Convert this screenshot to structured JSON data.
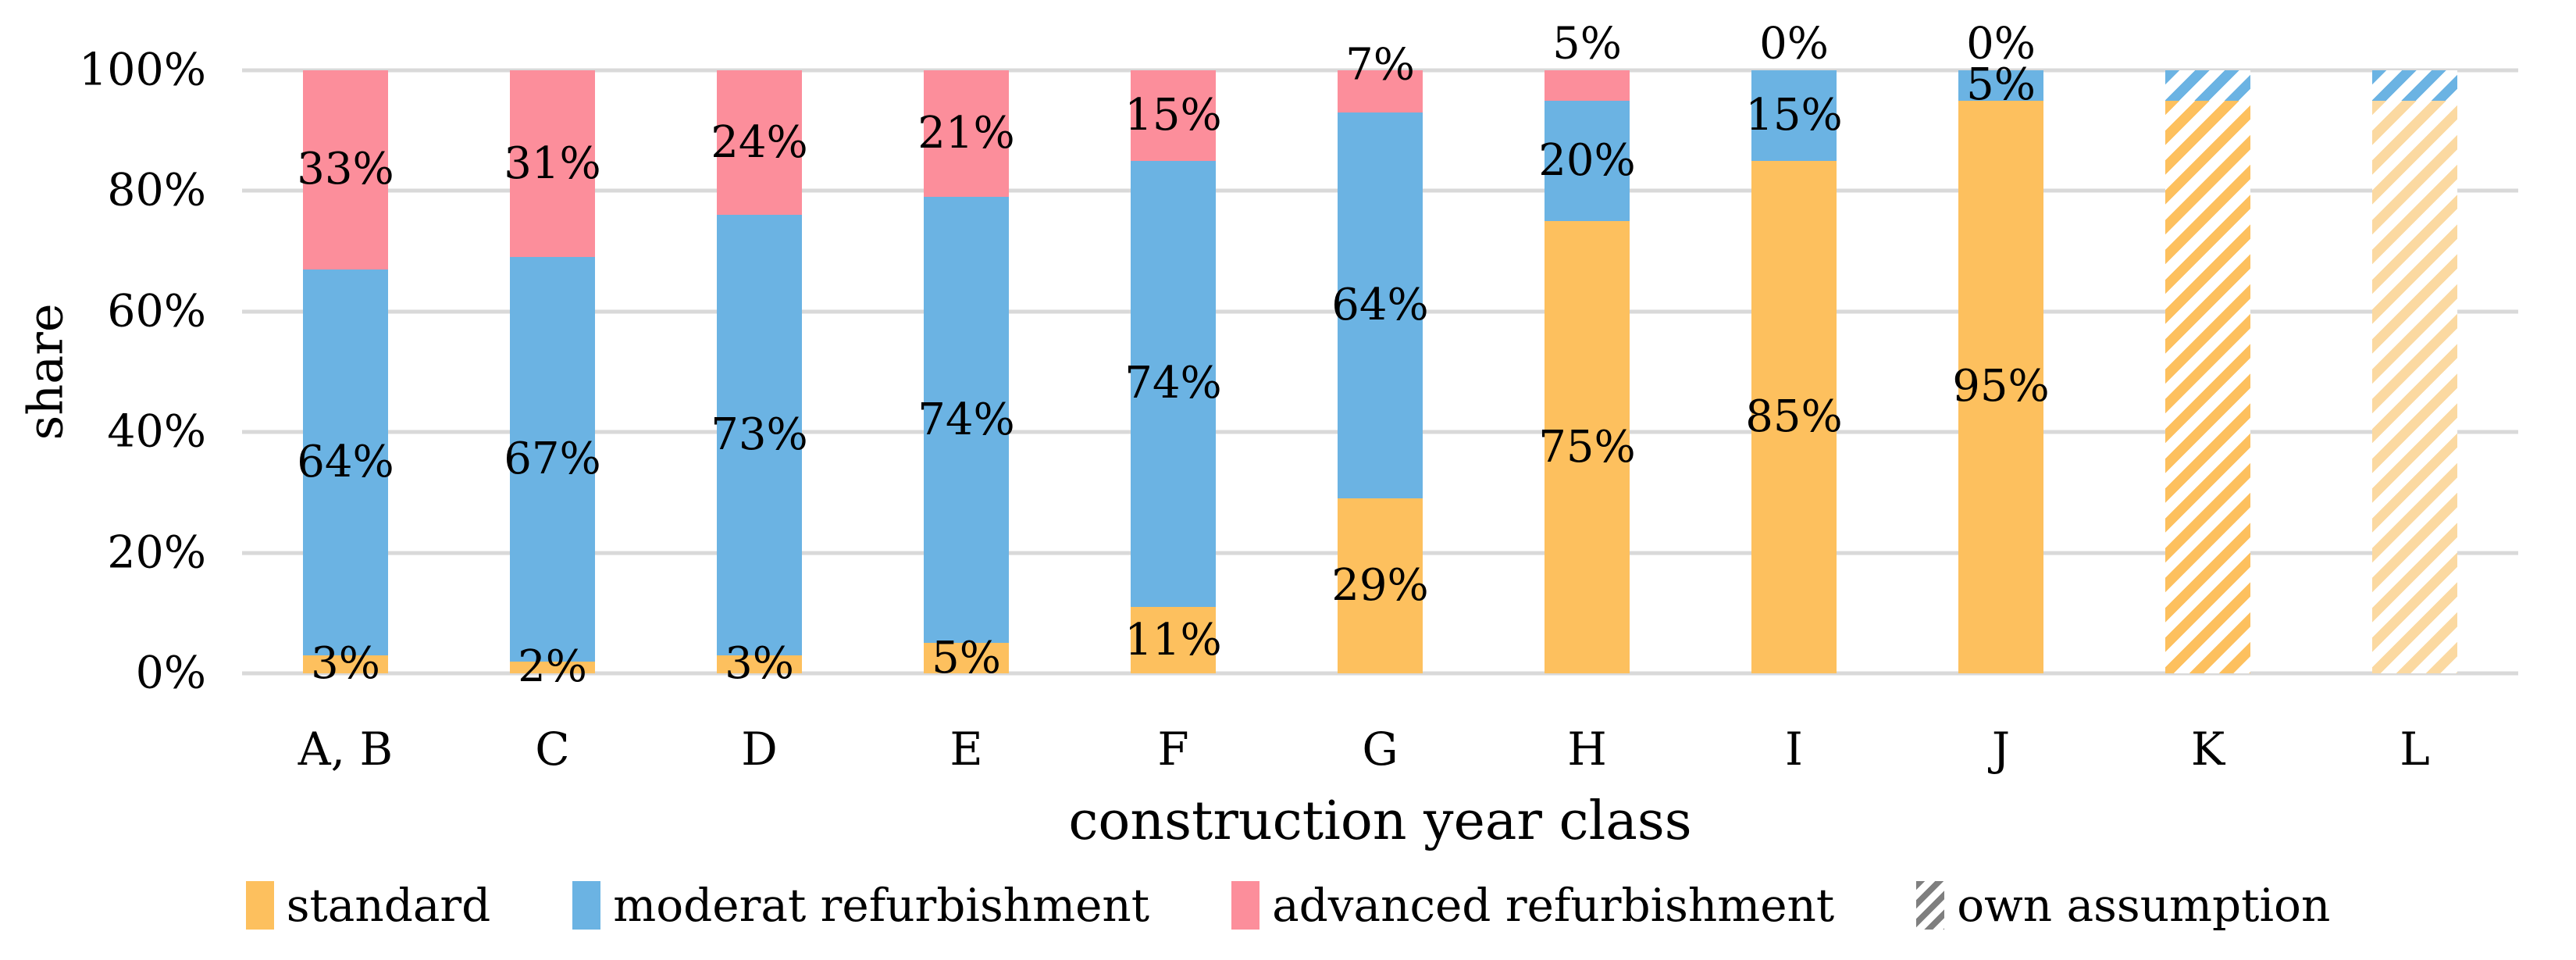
{
  "figure": {
    "background": "#FFFFFF"
  },
  "colors": {
    "standard": "#FDC05E",
    "moderat_refurbishment": "#6BB3E3",
    "advanced_refurbishment": "#FC8E9B",
    "standard_light": "#FBD9A1",
    "legend_hatch": "#7F7F7F",
    "gridline": "#D9D9D9",
    "text": "#000000"
  },
  "chart_data": {
    "type": "bar",
    "stacked": true,
    "title": "",
    "xlabel": "construction year class",
    "ylabel": "share",
    "ylim": [
      0,
      100
    ],
    "yticks": [
      "0%",
      "20%",
      "40%",
      "60%",
      "80%",
      "100%"
    ],
    "grid": true,
    "legend_position": "bottom",
    "categories": [
      "A, B",
      "C",
      "D",
      "E",
      "F",
      "G",
      "H",
      "I",
      "J",
      "K",
      "L"
    ],
    "series": [
      {
        "name": "standard",
        "values": [
          3,
          2,
          3,
          5,
          11,
          29,
          75,
          85,
          95,
          95,
          95
        ]
      },
      {
        "name": "moderat refurbishment",
        "values": [
          64,
          67,
          73,
          74,
          74,
          64,
          20,
          15,
          5,
          5,
          5
        ]
      },
      {
        "name": "advanced refurbishment",
        "values": [
          33,
          31,
          24,
          21,
          15,
          7,
          5,
          0,
          0,
          0,
          0
        ]
      }
    ],
    "bars": [
      {
        "category": "A, B",
        "segments": [
          {
            "value": 3,
            "color": "standard",
            "hatch": false,
            "label": "3%",
            "label_pos": "inside"
          },
          {
            "value": 64,
            "color": "moderat_refurbishment",
            "hatch": false,
            "label": "64%",
            "label_pos": "inside"
          },
          {
            "value": 33,
            "color": "advanced_refurbishment",
            "hatch": false,
            "label": "33%",
            "label_pos": "inside"
          }
        ]
      },
      {
        "category": "C",
        "segments": [
          {
            "value": 2,
            "color": "standard",
            "hatch": false,
            "label": "2%",
            "label_pos": "inside"
          },
          {
            "value": 67,
            "color": "moderat_refurbishment",
            "hatch": false,
            "label": "67%",
            "label_pos": "inside"
          },
          {
            "value": 31,
            "color": "advanced_refurbishment",
            "hatch": false,
            "label": "31%",
            "label_pos": "inside"
          }
        ]
      },
      {
        "category": "D",
        "segments": [
          {
            "value": 3,
            "color": "standard",
            "hatch": false,
            "label": "3%",
            "label_pos": "inside"
          },
          {
            "value": 73,
            "color": "moderat_refurbishment",
            "hatch": false,
            "label": "73%",
            "label_pos": "inside"
          },
          {
            "value": 24,
            "color": "advanced_refurbishment",
            "hatch": false,
            "label": "24%",
            "label_pos": "inside"
          }
        ]
      },
      {
        "category": "E",
        "segments": [
          {
            "value": 5,
            "color": "standard",
            "hatch": false,
            "label": "5%",
            "label_pos": "inside"
          },
          {
            "value": 74,
            "color": "moderat_refurbishment",
            "hatch": false,
            "label": "74%",
            "label_pos": "inside"
          },
          {
            "value": 21,
            "color": "advanced_refurbishment",
            "hatch": false,
            "label": "21%",
            "label_pos": "inside"
          }
        ]
      },
      {
        "category": "F",
        "segments": [
          {
            "value": 11,
            "color": "standard",
            "hatch": false,
            "label": "11%",
            "label_pos": "inside"
          },
          {
            "value": 74,
            "color": "moderat_refurbishment",
            "hatch": false,
            "label": "74%",
            "label_pos": "inside"
          },
          {
            "value": 15,
            "color": "advanced_refurbishment",
            "hatch": false,
            "label": "15%",
            "label_pos": "inside"
          }
        ]
      },
      {
        "category": "G",
        "segments": [
          {
            "value": 29,
            "color": "standard",
            "hatch": false,
            "label": "29%",
            "label_pos": "inside"
          },
          {
            "value": 64,
            "color": "moderat_refurbishment",
            "hatch": false,
            "label": "64%",
            "label_pos": "inside"
          },
          {
            "value": 7,
            "color": "advanced_refurbishment",
            "hatch": false,
            "label": "7%",
            "label_pos": "above-overlap"
          }
        ]
      },
      {
        "category": "H",
        "segments": [
          {
            "value": 75,
            "color": "standard",
            "hatch": false,
            "label": "75%",
            "label_pos": "inside"
          },
          {
            "value": 20,
            "color": "moderat_refurbishment",
            "hatch": false,
            "label": "20%",
            "label_pos": "inside"
          },
          {
            "value": 5,
            "color": "advanced_refurbishment",
            "hatch": false,
            "label": "5%",
            "label_pos": "above"
          }
        ]
      },
      {
        "category": "I",
        "segments": [
          {
            "value": 85,
            "color": "standard",
            "hatch": false,
            "label": "85%",
            "label_pos": "inside"
          },
          {
            "value": 15,
            "color": "moderat_refurbishment",
            "hatch": false,
            "label": "15%",
            "label_pos": "inside"
          },
          {
            "value": 0,
            "color": "advanced_refurbishment",
            "hatch": false,
            "label": "0%",
            "label_pos": "above"
          }
        ]
      },
      {
        "category": "J",
        "segments": [
          {
            "value": 95,
            "color": "standard",
            "hatch": false,
            "label": "95%",
            "label_pos": "inside"
          },
          {
            "value": 5,
            "color": "moderat_refurbishment",
            "hatch": false,
            "label": "5%",
            "label_pos": "inside"
          },
          {
            "value": 0,
            "color": "advanced_refurbishment",
            "hatch": false,
            "label": "0%",
            "label_pos": "above"
          }
        ]
      },
      {
        "category": "K",
        "segments": [
          {
            "value": 95,
            "color": "standard",
            "hatch": true
          },
          {
            "value": 5,
            "color": "moderat_refurbishment",
            "hatch": true
          }
        ]
      },
      {
        "category": "L",
        "segments": [
          {
            "value": 95,
            "color": "standard_light",
            "hatch": true
          },
          {
            "value": 5,
            "color": "moderat_refurbishment",
            "hatch": true
          }
        ]
      }
    ],
    "legend_items": [
      {
        "label": "standard",
        "color": "standard",
        "hatch": false
      },
      {
        "label": "moderat refurbishment",
        "color": "moderat_refurbishment",
        "hatch": false
      },
      {
        "label": "advanced refurbishment",
        "color": "advanced_refurbishment",
        "hatch": false
      },
      {
        "label": "own assumption",
        "color": "legend_hatch",
        "hatch": true
      }
    ]
  }
}
